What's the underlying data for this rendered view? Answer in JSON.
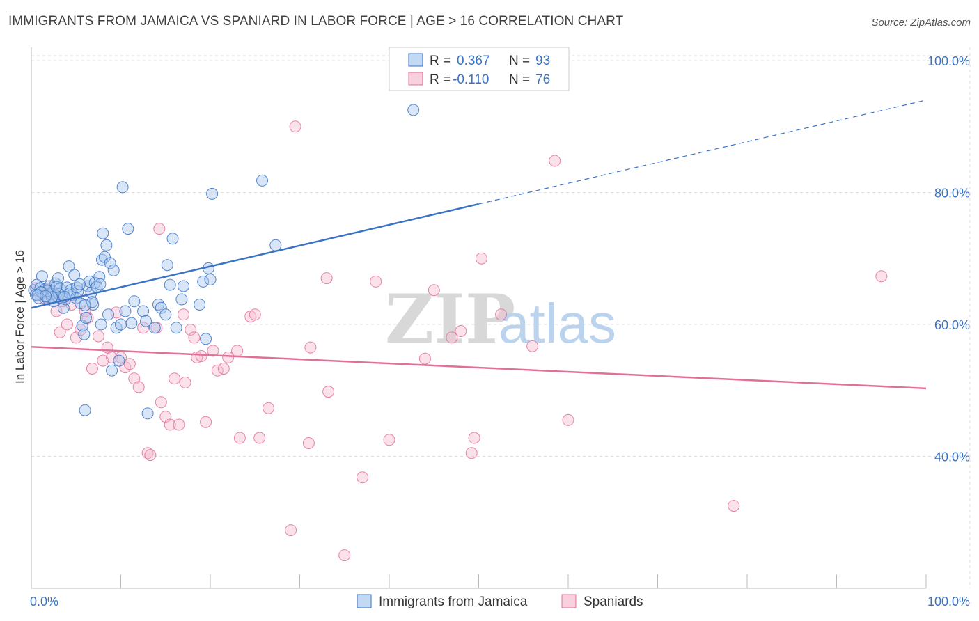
{
  "title": "IMMIGRANTS FROM JAMAICA VS SPANIARD IN LABOR FORCE | AGE > 16 CORRELATION CHART",
  "source": "Source: ZipAtlas.com",
  "watermark": {
    "zip": "ZIP",
    "atlas": "atlas"
  },
  "colors": {
    "blue": "#3a72c4",
    "blue_fill": "#a9c8ee",
    "pink": "#e0709a",
    "pink_fill": "#f6bcd0",
    "grid": "#dddddd"
  },
  "chart_data": {
    "type": "scatter",
    "title": "IMMIGRANTS FROM JAMAICA VS SPANIARD IN LABOR FORCE | AGE > 16 CORRELATION CHART",
    "xlabel": "",
    "ylabel": "In Labor Force | Age > 16",
    "xlim": [
      0,
      100
    ],
    "ylim": [
      20,
      102
    ],
    "x_ticks": [
      "0.0%",
      "100.0%"
    ],
    "y_ticks": [
      {
        "value": 40,
        "label": "40.0%"
      },
      {
        "value": 60,
        "label": "60.0%"
      },
      {
        "value": 80,
        "label": "80.0%"
      },
      {
        "value": 100,
        "label": "100.0%"
      }
    ],
    "legend": [
      {
        "r_label": "R =",
        "r_value": "0.367",
        "n_label": "N =",
        "n_value": "93"
      },
      {
        "r_label": "R =",
        "r_value": "-0.110",
        "n_label": "N =",
        "n_value": "76"
      }
    ],
    "series": [
      {
        "name": "Immigrants from Jamaica",
        "color": "#3a72c4",
        "trend": {
          "x0": 0,
          "y0": 62.5,
          "x1": 100,
          "y1": 94.0,
          "solid_to_x": 50
        },
        "points": [
          [
            0.3,
            65.2
          ],
          [
            0.5,
            64.5
          ],
          [
            0.6,
            66.0
          ],
          [
            0.8,
            64.0
          ],
          [
            1.0,
            65.5
          ],
          [
            1.2,
            67.3
          ],
          [
            1.3,
            64.8
          ],
          [
            1.5,
            65.3
          ],
          [
            1.7,
            64.2
          ],
          [
            1.9,
            63.8
          ],
          [
            2.0,
            65.8
          ],
          [
            2.2,
            64.6
          ],
          [
            2.4,
            65.0
          ],
          [
            2.5,
            63.5
          ],
          [
            2.7,
            66.2
          ],
          [
            2.9,
            64.3
          ],
          [
            3.0,
            67.0
          ],
          [
            3.2,
            65.4
          ],
          [
            3.4,
            64.0
          ],
          [
            3.6,
            62.5
          ],
          [
            3.8,
            63.8
          ],
          [
            4.0,
            65.6
          ],
          [
            4.2,
            68.8
          ],
          [
            4.4,
            65.2
          ],
          [
            4.6,
            64.5
          ],
          [
            4.8,
            67.5
          ],
          [
            5.0,
            64.0
          ],
          [
            5.2,
            65.0
          ],
          [
            5.5,
            63.2
          ],
          [
            5.7,
            59.8
          ],
          [
            5.9,
            58.5
          ],
          [
            6.1,
            61.0
          ],
          [
            6.3,
            65.8
          ],
          [
            6.5,
            66.5
          ],
          [
            6.7,
            64.8
          ],
          [
            6.9,
            63.0
          ],
          [
            7.1,
            66.3
          ],
          [
            7.3,
            65.7
          ],
          [
            7.6,
            67.2
          ],
          [
            7.8,
            60.0
          ],
          [
            7.9,
            69.8
          ],
          [
            8.0,
            73.8
          ],
          [
            8.2,
            70.2
          ],
          [
            8.4,
            72.0
          ],
          [
            8.6,
            61.5
          ],
          [
            8.8,
            69.3
          ],
          [
            9.0,
            53.0
          ],
          [
            9.2,
            68.2
          ],
          [
            9.5,
            59.5
          ],
          [
            9.8,
            54.5
          ],
          [
            10.0,
            60.0
          ],
          [
            10.2,
            80.8
          ],
          [
            10.5,
            62.0
          ],
          [
            10.8,
            74.5
          ],
          [
            11.2,
            60.2
          ],
          [
            11.5,
            63.5
          ],
          [
            12.5,
            62.0
          ],
          [
            12.8,
            60.5
          ],
          [
            13.0,
            46.5
          ],
          [
            13.8,
            59.5
          ],
          [
            14.2,
            63.0
          ],
          [
            14.5,
            62.5
          ],
          [
            15.0,
            61.5
          ],
          [
            15.2,
            69.0
          ],
          [
            15.5,
            66.0
          ],
          [
            15.8,
            73.0
          ],
          [
            16.2,
            59.5
          ],
          [
            16.8,
            63.8
          ],
          [
            17.0,
            65.8
          ],
          [
            18.8,
            63.0
          ],
          [
            19.2,
            66.5
          ],
          [
            19.5,
            57.8
          ],
          [
            19.8,
            68.5
          ],
          [
            20.0,
            66.8
          ],
          [
            20.2,
            79.8
          ],
          [
            25.8,
            81.8
          ],
          [
            27.3,
            72.0
          ],
          [
            42.7,
            92.5
          ],
          [
            3.1,
            64.6
          ],
          [
            1.8,
            65.1
          ],
          [
            2.3,
            64.1
          ],
          [
            4.3,
            64.7
          ],
          [
            5.1,
            65.6
          ],
          [
            6.8,
            63.4
          ],
          [
            1.1,
            64.9
          ],
          [
            2.8,
            65.7
          ],
          [
            3.7,
            64.2
          ],
          [
            5.4,
            66.1
          ],
          [
            6.0,
            62.9
          ],
          [
            7.7,
            66.1
          ],
          [
            0.7,
            64.4
          ],
          [
            1.6,
            64.3
          ],
          [
            6.0,
            47.0
          ]
        ]
      },
      {
        "name": "Spaniards",
        "color": "#e0709a",
        "trend": {
          "x0": 0,
          "y0": 56.6,
          "x1": 100,
          "y1": 50.3,
          "solid_to_x": 100
        },
        "points": [
          [
            0.5,
            65.5
          ],
          [
            1.0,
            64.5
          ],
          [
            1.5,
            64.0
          ],
          [
            2.0,
            65.0
          ],
          [
            2.8,
            62.0
          ],
          [
            3.2,
            58.8
          ],
          [
            4.0,
            60.0
          ],
          [
            4.5,
            63.0
          ],
          [
            5.0,
            58.0
          ],
          [
            5.5,
            59.2
          ],
          [
            6.0,
            62.0
          ],
          [
            6.3,
            61.0
          ],
          [
            6.8,
            53.3
          ],
          [
            7.5,
            58.2
          ],
          [
            8.0,
            54.5
          ],
          [
            8.5,
            56.5
          ],
          [
            9.0,
            55.0
          ],
          [
            9.5,
            61.8
          ],
          [
            10.0,
            55.0
          ],
          [
            10.5,
            53.5
          ],
          [
            11.0,
            54.0
          ],
          [
            11.5,
            51.8
          ],
          [
            12.0,
            50.5
          ],
          [
            12.5,
            59.5
          ],
          [
            13.0,
            40.5
          ],
          [
            13.3,
            40.2
          ],
          [
            14.0,
            59.5
          ],
          [
            14.3,
            74.5
          ],
          [
            14.5,
            48.2
          ],
          [
            15.0,
            46.0
          ],
          [
            15.5,
            44.8
          ],
          [
            16.0,
            51.8
          ],
          [
            16.5,
            44.8
          ],
          [
            17.0,
            61.5
          ],
          [
            17.2,
            51.2
          ],
          [
            17.8,
            59.2
          ],
          [
            18.2,
            58.0
          ],
          [
            18.5,
            55.0
          ],
          [
            19.0,
            55.2
          ],
          [
            19.5,
            45.2
          ],
          [
            20.3,
            56.0
          ],
          [
            20.8,
            53.0
          ],
          [
            21.5,
            53.3
          ],
          [
            22.0,
            55.0
          ],
          [
            23.0,
            56.0
          ],
          [
            23.3,
            42.8
          ],
          [
            24.5,
            61.2
          ],
          [
            25.0,
            61.5
          ],
          [
            25.5,
            42.8
          ],
          [
            26.5,
            47.3
          ],
          [
            29.0,
            28.8
          ],
          [
            29.5,
            90.0
          ],
          [
            31.0,
            42.0
          ],
          [
            31.2,
            56.5
          ],
          [
            33.0,
            67.0
          ],
          [
            33.2,
            49.8
          ],
          [
            35.0,
            25.0
          ],
          [
            37.0,
            36.8
          ],
          [
            38.5,
            66.5
          ],
          [
            40.0,
            42.5
          ],
          [
            44.0,
            54.8
          ],
          [
            45.0,
            65.2
          ],
          [
            47.0,
            58.0
          ],
          [
            48.0,
            59.0
          ],
          [
            49.2,
            40.5
          ],
          [
            49.5,
            42.8
          ],
          [
            50.3,
            70.0
          ],
          [
            52.5,
            61.5
          ],
          [
            56.0,
            56.7
          ],
          [
            58.5,
            84.8
          ],
          [
            60.0,
            45.5
          ],
          [
            78.5,
            32.5
          ],
          [
            95.0,
            67.3
          ],
          [
            2.3,
            64.5
          ],
          [
            3.5,
            63.5
          ],
          [
            1.7,
            65.3
          ]
        ]
      }
    ]
  }
}
